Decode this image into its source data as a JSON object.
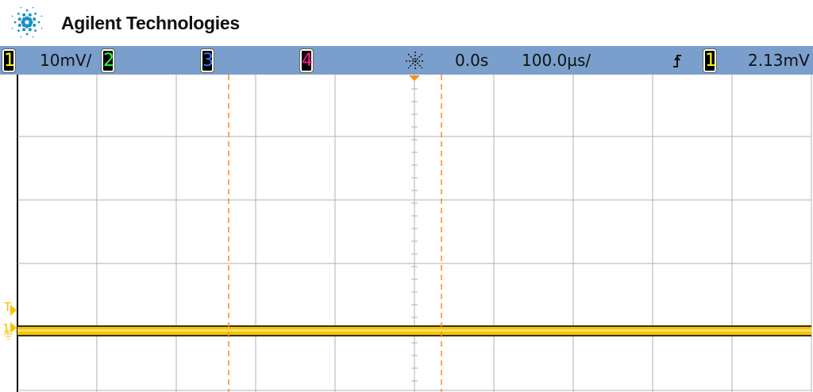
{
  "header": {
    "brand": "Agilent Technologies"
  },
  "status_bar": {
    "channels": [
      {
        "number": "1",
        "color": "#ffff00",
        "scale": "10mV/"
      },
      {
        "number": "2",
        "color": "#33ff33"
      },
      {
        "number": "3",
        "color": "#3377ff"
      },
      {
        "number": "4",
        "color": "#ff1a8c"
      }
    ],
    "run_icon": "sparkle-icon",
    "time_delay": "0.0s",
    "time_scale": "100.0µs/",
    "trigger_edge_icon": "rising-edge-icon",
    "trigger_source": "1",
    "trigger_level": "2.13mV"
  },
  "display": {
    "trace_color": "#f5c400",
    "cursor_color": "#ff8c1a",
    "grid_color": "#b0b0b0",
    "markers": {
      "trigger": "T",
      "channel1": "1"
    }
  }
}
